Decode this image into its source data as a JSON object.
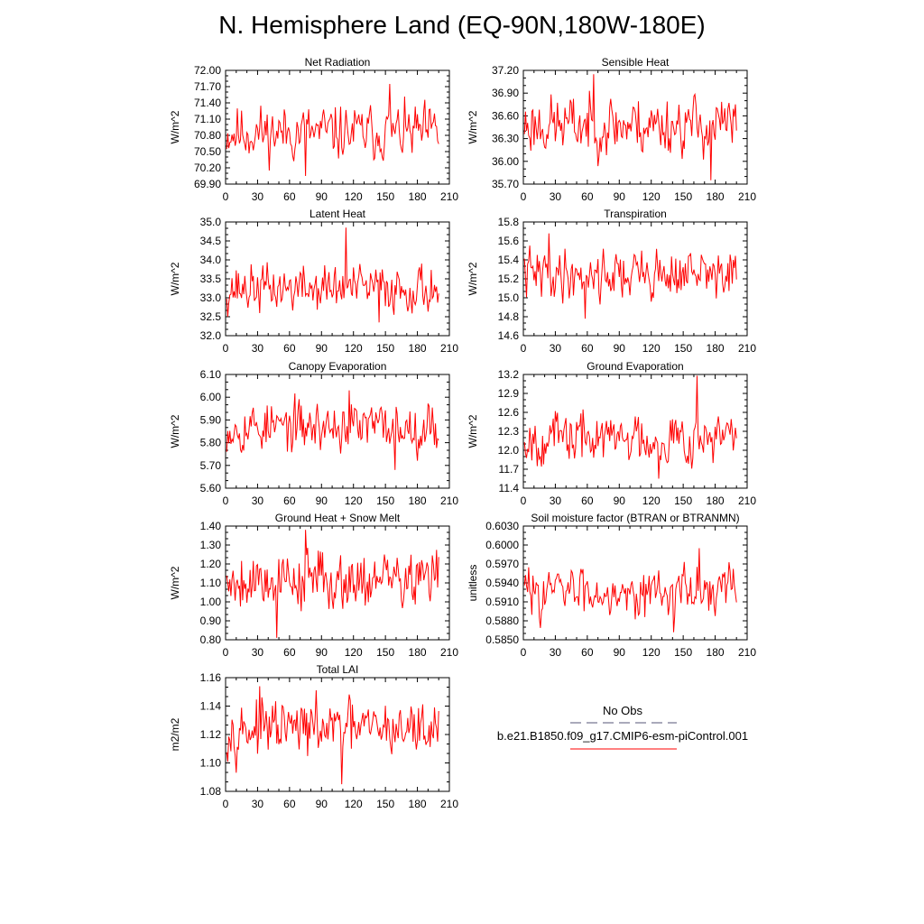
{
  "title": "N. Hemisphere Land (EQ-90N,180W-180E)",
  "colors": {
    "model_line": "#ff0000",
    "obs_line": "#555577",
    "axis": "#000000"
  },
  "legend": {
    "title": "No Obs",
    "model_label": "b.e21.B1850.f09_g17.CMIP6-esm-piControl.001"
  },
  "chart_data": [
    {
      "type": "line",
      "title": "Net Radiation",
      "xlabel": "",
      "ylabel": "W/m^2",
      "xlim": [
        0,
        210
      ],
      "ylim": [
        69.9,
        72.0
      ],
      "xticks": [
        0,
        30,
        60,
        90,
        120,
        150,
        180,
        210
      ],
      "ytick_labels": [
        "72.00",
        "71.70",
        "71.40",
        "71.10",
        "70.80",
        "70.50",
        "70.20",
        "69.90"
      ],
      "stats": {
        "mean": 70.85,
        "amp": 0.32,
        "min": 70.05,
        "max": 71.75,
        "seed": 11
      }
    },
    {
      "type": "line",
      "title": "Sensible Heat",
      "xlabel": "",
      "ylabel": "W/m^2",
      "xlim": [
        0,
        210
      ],
      "ylim": [
        35.7,
        37.2
      ],
      "xticks": [
        0,
        30,
        60,
        90,
        120,
        150,
        180,
        210
      ],
      "ytick_labels": [
        "37.20",
        "36.90",
        "36.60",
        "36.30",
        "36.00",
        "35.70"
      ],
      "stats": {
        "mean": 36.48,
        "amp": 0.25,
        "min": 35.75,
        "max": 37.15,
        "seed": 23
      }
    },
    {
      "type": "line",
      "title": "Latent Heat",
      "xlabel": "",
      "ylabel": "W/m^2",
      "xlim": [
        0,
        210
      ],
      "ylim": [
        32.0,
        35.0
      ],
      "xticks": [
        0,
        30,
        60,
        90,
        120,
        150,
        180,
        210
      ],
      "ytick_labels": [
        "35.0",
        "34.5",
        "34.0",
        "33.5",
        "33.0",
        "32.5",
        "32.0"
      ],
      "stats": {
        "mean": 33.25,
        "amp": 0.4,
        "min": 32.35,
        "max": 34.85,
        "seed": 37
      }
    },
    {
      "type": "line",
      "title": "Transpiration",
      "xlabel": "",
      "ylabel": "W/m^2",
      "xlim": [
        0,
        210
      ],
      "ylim": [
        14.6,
        15.8
      ],
      "xticks": [
        0,
        30,
        60,
        90,
        120,
        150,
        180,
        210
      ],
      "ytick_labels": [
        "15.8",
        "15.6",
        "15.4",
        "15.2",
        "15.0",
        "14.8",
        "14.6"
      ],
      "stats": {
        "mean": 15.25,
        "amp": 0.17,
        "min": 14.78,
        "max": 15.68,
        "seed": 41
      }
    },
    {
      "type": "line",
      "title": "Canopy Evaporation",
      "xlabel": "",
      "ylabel": "W/m^2",
      "xlim": [
        0,
        210
      ],
      "ylim": [
        5.6,
        6.1
      ],
      "xticks": [
        0,
        30,
        60,
        90,
        120,
        150,
        180,
        210
      ],
      "ytick_labels": [
        "6.10",
        "6.00",
        "5.90",
        "5.80",
        "5.70",
        "5.60"
      ],
      "stats": {
        "mean": 5.87,
        "amp": 0.07,
        "min": 5.68,
        "max": 6.03,
        "seed": 53
      }
    },
    {
      "type": "line",
      "title": "Ground Evaporation",
      "xlabel": "",
      "ylabel": "W/m^2",
      "xlim": [
        0,
        210
      ],
      "ylim": [
        11.4,
        13.2
      ],
      "xticks": [
        0,
        30,
        60,
        90,
        120,
        150,
        180,
        210
      ],
      "ytick_labels": [
        "13.2",
        "12.9",
        "12.6",
        "12.3",
        "12.0",
        "11.7",
        "11.4"
      ],
      "stats": {
        "mean": 12.2,
        "amp": 0.26,
        "min": 11.55,
        "max": 13.18,
        "seed": 67
      }
    },
    {
      "type": "line",
      "title": "Ground Heat + Snow Melt",
      "xlabel": "",
      "ylabel": "W/m^2",
      "xlim": [
        0,
        210
      ],
      "ylim": [
        0.8,
        1.4
      ],
      "xticks": [
        0,
        30,
        60,
        90,
        120,
        150,
        180,
        210
      ],
      "ytick_labels": [
        "1.40",
        "1.30",
        "1.20",
        "1.10",
        "1.00",
        "0.90",
        "0.80"
      ],
      "stats": {
        "mean": 1.12,
        "amp": 0.1,
        "min": 0.81,
        "max": 1.38,
        "seed": 79
      }
    },
    {
      "type": "line",
      "title": "Soil moisture factor (BTRAN or BTRANMN)",
      "xlabel": "",
      "ylabel": "unitless",
      "xlim": [
        0,
        210
      ],
      "ylim": [
        0.585,
        0.603
      ],
      "xticks": [
        0,
        30,
        60,
        90,
        120,
        150,
        180,
        210
      ],
      "ytick_labels": [
        "0.6030",
        "0.6000",
        "0.5970",
        "0.5940",
        "0.5910",
        "0.5880",
        "0.5850"
      ],
      "stats": {
        "mean": 0.5928,
        "amp": 0.0024,
        "min": 0.5862,
        "max": 0.5995,
        "seed": 83
      }
    },
    {
      "type": "line",
      "title": "Total LAI",
      "xlabel": "",
      "ylabel": "m2/m2",
      "xlim": [
        0,
        210
      ],
      "ylim": [
        1.08,
        1.16
      ],
      "xticks": [
        0,
        30,
        60,
        90,
        120,
        150,
        180,
        210
      ],
      "ytick_labels": [
        "1.16",
        "1.14",
        "1.12",
        "1.10",
        "1.08"
      ],
      "stats": {
        "mean": 1.124,
        "amp": 0.012,
        "min": 1.085,
        "max": 1.154,
        "seed": 97
      }
    }
  ]
}
